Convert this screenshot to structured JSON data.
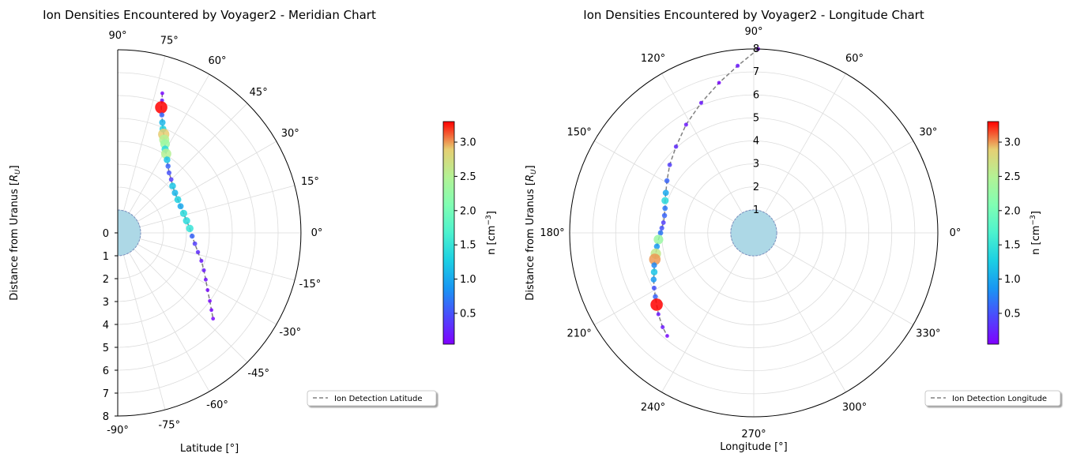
{
  "chart_data": [
    {
      "type": "scatter",
      "projection": "polar-half",
      "title": "Ion Densities Encountered by Voyager2 - Meridian Chart",
      "xlabel": "Latitude [°]",
      "ylabel": "Distance from Uranus [R_U]",
      "ylabel_main": "Distance from Uranus [",
      "ylabel_sub": "U",
      "ylabel_var": "R",
      "ylabel_close": "]",
      "angle_range_deg": [
        -90,
        90
      ],
      "angle_ticks": [
        "-90°",
        "-75°",
        "-60°",
        "-45°",
        "-30°",
        "-15°",
        "0°",
        "15°",
        "30°",
        "45°",
        "60°",
        "75°",
        "90°"
      ],
      "r_range": [
        0,
        8
      ],
      "r_ticks": [
        "0",
        "1",
        "2",
        "3",
        "4",
        "5",
        "6",
        "7",
        "8"
      ],
      "grid": true,
      "planet_radius": 1,
      "colorbar": {
        "label": "n [cm",
        "label_exp": "−3",
        "label_end": "]",
        "range": [
          0.05,
          3.3
        ],
        "ticks": [
          "0.5",
          "1.0",
          "1.5",
          "2.0",
          "2.5",
          "3.0"
        ],
        "tick_values": [
          0.5,
          1.0,
          1.5,
          2.0,
          2.5,
          3.0
        ]
      },
      "legend": {
        "label": "Ion Detection Latitude",
        "placement": "lower-right"
      },
      "series": [
        {
          "name": "Ion Detection Latitude",
          "points": [
            [
              72.3,
              6.4,
              0.1
            ],
            [
              71.5,
              6.1,
              0.2
            ],
            [
              70.9,
              5.8,
              3.3
            ],
            [
              69.5,
              5.5,
              0.6
            ],
            [
              68.0,
              5.2,
              1.1
            ],
            [
              66.5,
              4.95,
              1.3
            ],
            [
              65.0,
              4.75,
              2.9
            ],
            [
              63.5,
              4.55,
              2.5
            ],
            [
              62.0,
              4.4,
              2.3
            ],
            [
              60.5,
              4.2,
              1.4
            ],
            [
              58.5,
              4.05,
              2.5
            ],
            [
              56.0,
              3.85,
              1.2
            ],
            [
              53.0,
              3.65,
              0.6
            ],
            [
              49.5,
              3.45,
              0.5
            ],
            [
              45.0,
              3.3,
              0.4
            ],
            [
              40.5,
              3.15,
              1.2
            ],
            [
              35.0,
              3.05,
              1.1
            ],
            [
              29.0,
              3.0,
              1.3
            ],
            [
              23.0,
              2.98,
              1.0
            ],
            [
              16.5,
              3.0,
              1.4
            ],
            [
              10.0,
              3.05,
              1.4
            ],
            [
              3.5,
              3.15,
              1.5
            ],
            [
              -2.5,
              3.25,
              0.6
            ],
            [
              -8.0,
              3.4,
              0.4
            ],
            [
              -13.5,
              3.6,
              0.3
            ],
            [
              -18.5,
              3.85,
              0.2
            ],
            [
              -23.5,
              4.1,
              0.2
            ],
            [
              -28.0,
              4.35,
              0.15
            ],
            [
              -32.5,
              4.65,
              0.1
            ],
            [
              -36.5,
              5.0,
              0.1
            ],
            [
              -39.5,
              5.3,
              0.1
            ],
            [
              -42.0,
              5.6,
              0.1
            ]
          ]
        }
      ]
    },
    {
      "type": "scatter",
      "projection": "polar",
      "title": "Ion Densities Encountered by Voyager2 - Longitude Chart",
      "xlabel": "Longitude [°]",
      "ylabel": "Distance from Uranus [R_U]",
      "ylabel_main": "Distance from Uranus [",
      "ylabel_sub": "U",
      "ylabel_var": "R",
      "ylabel_close": "]",
      "angle_range_deg": [
        0,
        360
      ],
      "angle_ticks": [
        "0°",
        "30°",
        "60°",
        "90°",
        "120°",
        "150°",
        "180°",
        "210°",
        "240°",
        "270°",
        "300°",
        "330°"
      ],
      "r_range": [
        0,
        8
      ],
      "r_ticks": [
        "1",
        "2",
        "3",
        "4",
        "5",
        "6",
        "7",
        "8"
      ],
      "grid": true,
      "planet_radius": 1,
      "colorbar": {
        "label": "n [cm",
        "label_exp": "−3",
        "label_end": "]",
        "range": [
          0.05,
          3.3
        ],
        "ticks": [
          "0.5",
          "1.0",
          "1.5",
          "2.0",
          "2.5",
          "3.0"
        ],
        "tick_values": [
          0.5,
          1.0,
          1.5,
          2.0,
          2.5,
          3.0
        ]
      },
      "legend": {
        "label": "Ion Detection Longitude",
        "placement": "lower-right"
      },
      "series": [
        {
          "name": "Ion Detection Longitude",
          "points": [
            [
              88.6,
              8.0,
              0.1
            ],
            [
              95.5,
              7.3,
              0.2
            ],
            [
              103.0,
              6.7,
              0.1
            ],
            [
              112.0,
              6.1,
              0.2
            ],
            [
              122.0,
              5.55,
              0.2
            ],
            [
              132.0,
              5.05,
              0.3
            ],
            [
              141.0,
              4.7,
              0.4
            ],
            [
              149.0,
              4.4,
              0.6
            ],
            [
              155.5,
              4.2,
              1.0
            ],
            [
              160.0,
              4.1,
              1.4
            ],
            [
              164.5,
              4.0,
              0.7
            ],
            [
              169.0,
              3.95,
              0.6
            ],
            [
              173.5,
              3.95,
              0.4
            ],
            [
              177.0,
              4.0,
              0.5
            ],
            [
              180.0,
              4.05,
              0.7
            ],
            [
              184.0,
              4.15,
              2.3
            ],
            [
              188.0,
              4.25,
              0.9
            ],
            [
              192.0,
              4.35,
              2.6
            ],
            [
              195.0,
              4.45,
              3.0
            ],
            [
              198.0,
              4.55,
              0.8
            ],
            [
              201.5,
              4.65,
              1.2
            ],
            [
              205.0,
              4.8,
              0.9
            ],
            [
              209.0,
              4.95,
              0.5
            ],
            [
              213.0,
              5.1,
              0.6
            ],
            [
              216.5,
              5.25,
              3.3
            ],
            [
              220.5,
              5.45,
              0.2
            ],
            [
              226.0,
              5.7,
              0.2
            ],
            [
              230.0,
              5.85,
              0.1
            ]
          ]
        }
      ]
    }
  ]
}
